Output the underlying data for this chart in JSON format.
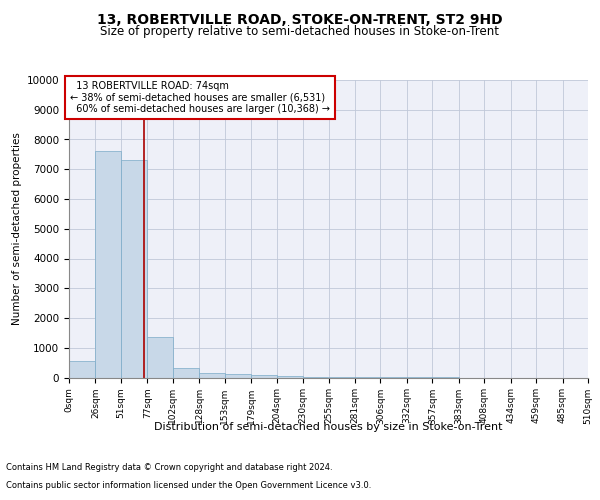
{
  "title": "13, ROBERTVILLE ROAD, STOKE-ON-TRENT, ST2 9HD",
  "subtitle": "Size of property relative to semi-detached houses in Stoke-on-Trent",
  "xlabel": "Distribution of semi-detached houses by size in Stoke-on-Trent",
  "ylabel": "Number of semi-detached properties",
  "footnote1": "Contains HM Land Registry data © Crown copyright and database right 2024.",
  "footnote2": "Contains public sector information licensed under the Open Government Licence v3.0.",
  "bin_edges": [
    0,
    26,
    51,
    77,
    102,
    128,
    153,
    179,
    204,
    230,
    255,
    281,
    306,
    332,
    357,
    383,
    408,
    434,
    459,
    485,
    510
  ],
  "bar_heights": [
    550,
    7600,
    7300,
    1350,
    320,
    150,
    120,
    100,
    50,
    20,
    10,
    5,
    2,
    1,
    1,
    0,
    0,
    0,
    0,
    0
  ],
  "bar_color": "#c8d8e8",
  "bar_edge_color": "#7aaac8",
  "property_size": 74,
  "property_label": "13 ROBERTVILLE ROAD: 74sqm",
  "pct_smaller": 38,
  "n_smaller": 6531,
  "pct_larger": 60,
  "n_larger": 10368,
  "vline_color": "#aa0000",
  "annotation_box_color": "#cc0000",
  "ylim": [
    0,
    10000
  ],
  "yticks": [
    0,
    1000,
    2000,
    3000,
    4000,
    5000,
    6000,
    7000,
    8000,
    9000,
    10000
  ],
  "grid_color": "#c0c8d8",
  "bg_color": "#eef0f8",
  "title_fontsize": 10,
  "subtitle_fontsize": 8.5
}
